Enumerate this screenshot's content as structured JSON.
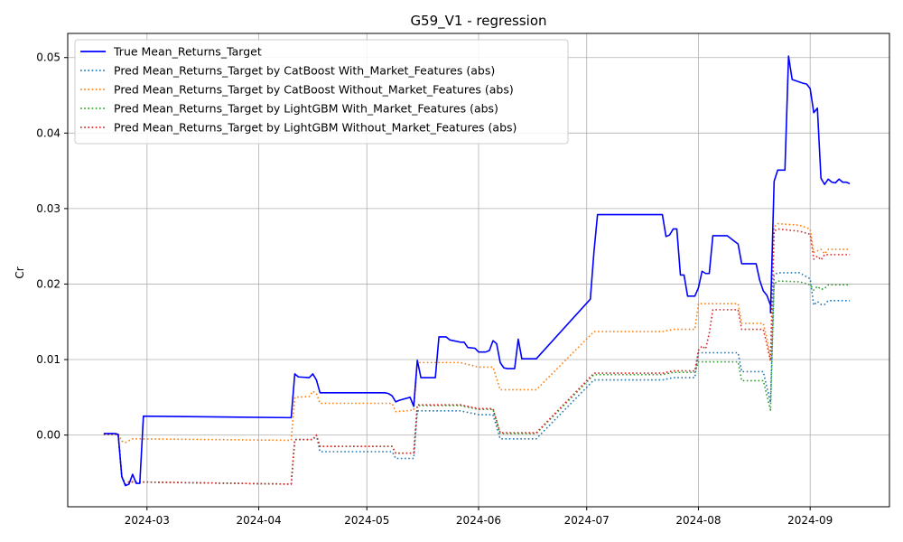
{
  "chart_data": {
    "type": "line",
    "title": "G59_V1 - regression",
    "xlabel": "",
    "ylabel": "Cr",
    "x_axis_type": "date",
    "xlim": [
      "2024-02-08",
      "2024-09-23"
    ],
    "ylim": [
      -0.0095,
      0.0532
    ],
    "x_tick_labels": [
      "2024-03",
      "2024-04",
      "2024-05",
      "2024-06",
      "2024-07",
      "2024-08",
      "2024-09"
    ],
    "x_tick_dates": [
      "2024-03-01",
      "2024-04-01",
      "2024-05-01",
      "2024-06-01",
      "2024-07-01",
      "2024-08-01",
      "2024-09-01"
    ],
    "y_ticks": [
      0.0,
      0.01,
      0.02,
      0.03,
      0.04,
      0.05
    ],
    "y_tick_labels": [
      "0.00",
      "0.01",
      "0.02",
      "0.03",
      "0.04",
      "0.05"
    ],
    "grid": true,
    "legend_position": "upper-left",
    "series": [
      {
        "name": "True Mean_Returns_Target",
        "color": "#0000ff",
        "style": "solid",
        "points": [
          [
            "2024-02-18",
            0.0002
          ],
          [
            "2024-02-21",
            0.0002
          ],
          [
            "2024-02-22",
            0.0001
          ],
          [
            "2024-02-23",
            -0.0055
          ],
          [
            "2024-02-24",
            -0.0067
          ],
          [
            "2024-02-25",
            -0.0065
          ],
          [
            "2024-02-26",
            -0.0052
          ],
          [
            "2024-02-27",
            -0.0064
          ],
          [
            "2024-02-28",
            -0.0064
          ],
          [
            "2024-02-29",
            0.0025
          ],
          [
            "2024-04-10",
            0.0023
          ],
          [
            "2024-04-11",
            0.0081
          ],
          [
            "2024-04-12",
            0.0077
          ],
          [
            "2024-04-15",
            0.0076
          ],
          [
            "2024-04-16",
            0.0081
          ],
          [
            "2024-04-17",
            0.0073
          ],
          [
            "2024-04-18",
            0.0056
          ],
          [
            "2024-05-06",
            0.0056
          ],
          [
            "2024-05-07",
            0.0055
          ],
          [
            "2024-05-08",
            0.0052
          ],
          [
            "2024-05-09",
            0.0044
          ],
          [
            "2024-05-10",
            0.0046
          ],
          [
            "2024-05-13",
            0.005
          ],
          [
            "2024-05-14",
            0.0038
          ],
          [
            "2024-05-15",
            0.0099
          ],
          [
            "2024-05-16",
            0.0076
          ],
          [
            "2024-05-17",
            0.0076
          ],
          [
            "2024-05-20",
            0.0076
          ],
          [
            "2024-05-21",
            0.013
          ],
          [
            "2024-05-23",
            0.013
          ],
          [
            "2024-05-24",
            0.0126
          ],
          [
            "2024-05-27",
            0.0123
          ],
          [
            "2024-05-28",
            0.0123
          ],
          [
            "2024-05-29",
            0.0116
          ],
          [
            "2024-05-31",
            0.0115
          ],
          [
            "2024-06-01",
            0.011
          ],
          [
            "2024-06-03",
            0.011
          ],
          [
            "2024-06-04",
            0.0112
          ],
          [
            "2024-06-05",
            0.0125
          ],
          [
            "2024-06-06",
            0.0121
          ],
          [
            "2024-06-07",
            0.0096
          ],
          [
            "2024-06-08",
            0.0089
          ],
          [
            "2024-06-09",
            0.0088
          ],
          [
            "2024-06-11",
            0.0088
          ],
          [
            "2024-06-12",
            0.0127
          ],
          [
            "2024-06-13",
            0.0101
          ],
          [
            "2024-06-17",
            0.0101
          ],
          [
            "2024-07-02",
            0.018
          ],
          [
            "2024-07-03",
            0.0242
          ],
          [
            "2024-07-04",
            0.0292
          ],
          [
            "2024-07-22",
            0.0292
          ],
          [
            "2024-07-23",
            0.0263
          ],
          [
            "2024-07-24",
            0.0265
          ],
          [
            "2024-07-25",
            0.0273
          ],
          [
            "2024-07-26",
            0.0273
          ],
          [
            "2024-07-27",
            0.0212
          ],
          [
            "2024-07-28",
            0.0212
          ],
          [
            "2024-07-29",
            0.0184
          ],
          [
            "2024-07-31",
            0.0184
          ],
          [
            "2024-08-01",
            0.0195
          ],
          [
            "2024-08-02",
            0.0217
          ],
          [
            "2024-08-03",
            0.0214
          ],
          [
            "2024-08-04",
            0.0214
          ],
          [
            "2024-08-05",
            0.0264
          ],
          [
            "2024-08-09",
            0.0264
          ],
          [
            "2024-08-12",
            0.0253
          ],
          [
            "2024-08-13",
            0.0227
          ],
          [
            "2024-08-17",
            0.0227
          ],
          [
            "2024-08-18",
            0.0205
          ],
          [
            "2024-08-19",
            0.0191
          ],
          [
            "2024-08-20",
            0.0185
          ],
          [
            "2024-08-21",
            0.0172
          ],
          [
            "2024-08-21",
            0.0162
          ],
          [
            "2024-08-22",
            0.0336
          ],
          [
            "2024-08-23",
            0.0351
          ],
          [
            "2024-08-25",
            0.0351
          ],
          [
            "2024-08-26",
            0.0502
          ],
          [
            "2024-08-27",
            0.0471
          ],
          [
            "2024-08-30",
            0.0466
          ],
          [
            "2024-08-31",
            0.0465
          ],
          [
            "2024-09-01",
            0.0459
          ],
          [
            "2024-09-02",
            0.0427
          ],
          [
            "2024-09-03",
            0.0433
          ],
          [
            "2024-09-04",
            0.034
          ],
          [
            "2024-09-05",
            0.0332
          ],
          [
            "2024-09-06",
            0.0339
          ],
          [
            "2024-09-07",
            0.0335
          ],
          [
            "2024-09-08",
            0.0334
          ],
          [
            "2024-09-09",
            0.0339
          ],
          [
            "2024-09-10",
            0.0335
          ],
          [
            "2024-09-11",
            0.0335
          ],
          [
            "2024-09-12",
            0.0333
          ]
        ]
      },
      {
        "name": "Pred Mean_Returns_Target by CatBoost With_Market_Features (abs)",
        "color": "#1f77b4",
        "style": "dotted",
        "points": [
          [
            "2024-02-18",
            0.0001
          ],
          [
            "2024-02-22",
            0.0001
          ],
          [
            "2024-02-23",
            -0.0055
          ],
          [
            "2024-02-24",
            -0.0065
          ],
          [
            "2024-02-25",
            -0.0062
          ],
          [
            "2024-04-10",
            -0.0065
          ],
          [
            "2024-04-11",
            -0.0006
          ],
          [
            "2024-04-16",
            -0.0006
          ],
          [
            "2024-04-17",
            0.0
          ],
          [
            "2024-04-18",
            -0.0022
          ],
          [
            "2024-05-08",
            -0.0022
          ],
          [
            "2024-05-09",
            -0.0031
          ],
          [
            "2024-05-14",
            -0.0031
          ],
          [
            "2024-05-15",
            0.0032
          ],
          [
            "2024-05-27",
            0.0032
          ],
          [
            "2024-06-01",
            0.0027
          ],
          [
            "2024-06-05",
            0.0027
          ],
          [
            "2024-06-07",
            -0.0005
          ],
          [
            "2024-06-17",
            -0.0005
          ],
          [
            "2024-07-03",
            0.0073
          ],
          [
            "2024-07-22",
            0.0073
          ],
          [
            "2024-07-25",
            0.0076
          ],
          [
            "2024-07-31",
            0.0076
          ],
          [
            "2024-08-01",
            0.0109
          ],
          [
            "2024-08-12",
            0.0109
          ],
          [
            "2024-08-13",
            0.0084
          ],
          [
            "2024-08-19",
            0.0084
          ],
          [
            "2024-08-20",
            0.0063
          ],
          [
            "2024-08-21",
            0.0043
          ],
          [
            "2024-08-22",
            0.0212
          ],
          [
            "2024-08-23",
            0.0215
          ],
          [
            "2024-08-29",
            0.0215
          ],
          [
            "2024-09-01",
            0.0207
          ],
          [
            "2024-09-02",
            0.0172
          ],
          [
            "2024-09-03",
            0.0177
          ],
          [
            "2024-09-04",
            0.0173
          ],
          [
            "2024-09-05",
            0.0173
          ],
          [
            "2024-09-06",
            0.0178
          ],
          [
            "2024-09-12",
            0.0178
          ]
        ]
      },
      {
        "name": "Pred Mean_Returns_Target by CatBoost Without_Market_Features (abs)",
        "color": "#ff7f0e",
        "style": "dotted",
        "points": [
          [
            "2024-02-18",
            0.0002
          ],
          [
            "2024-02-22",
            0.0002
          ],
          [
            "2024-02-23",
            -0.0008
          ],
          [
            "2024-02-24",
            -0.001
          ],
          [
            "2024-02-26",
            -0.0005
          ],
          [
            "2024-04-10",
            -0.0007
          ],
          [
            "2024-04-11",
            0.005
          ],
          [
            "2024-04-15",
            0.0051
          ],
          [
            "2024-04-16",
            0.0058
          ],
          [
            "2024-04-17",
            0.0055
          ],
          [
            "2024-04-18",
            0.0042
          ],
          [
            "2024-05-08",
            0.0042
          ],
          [
            "2024-05-09",
            0.0031
          ],
          [
            "2024-05-14",
            0.0033
          ],
          [
            "2024-05-15",
            0.0096
          ],
          [
            "2024-05-27",
            0.0096
          ],
          [
            "2024-06-01",
            0.009
          ],
          [
            "2024-06-05",
            0.009
          ],
          [
            "2024-06-07",
            0.006
          ],
          [
            "2024-06-17",
            0.006
          ],
          [
            "2024-07-03",
            0.0137
          ],
          [
            "2024-07-22",
            0.0137
          ],
          [
            "2024-07-25",
            0.014
          ],
          [
            "2024-07-31",
            0.014
          ],
          [
            "2024-08-01",
            0.0174
          ],
          [
            "2024-08-12",
            0.0174
          ],
          [
            "2024-08-13",
            0.0148
          ],
          [
            "2024-08-19",
            0.0148
          ],
          [
            "2024-08-20",
            0.0128
          ],
          [
            "2024-08-21",
            0.0102
          ],
          [
            "2024-08-22",
            0.0276
          ],
          [
            "2024-08-23",
            0.028
          ],
          [
            "2024-08-29",
            0.0278
          ],
          [
            "2024-09-01",
            0.0273
          ],
          [
            "2024-09-02",
            0.0242
          ],
          [
            "2024-09-04",
            0.0246
          ],
          [
            "2024-09-05",
            0.024
          ],
          [
            "2024-09-06",
            0.0246
          ],
          [
            "2024-09-12",
            0.0246
          ]
        ]
      },
      {
        "name": "Pred Mean_Returns_Target by LightGBM With_Market_Features (abs)",
        "color": "#2ca02c",
        "style": "dotted",
        "points": [
          [
            "2024-02-18",
            0.0001
          ],
          [
            "2024-02-22",
            0.0001
          ],
          [
            "2024-02-23",
            -0.0055
          ],
          [
            "2024-02-24",
            -0.0065
          ],
          [
            "2024-02-25",
            -0.0062
          ],
          [
            "2024-04-10",
            -0.0065
          ],
          [
            "2024-04-11",
            -0.0006
          ],
          [
            "2024-04-16",
            -0.0006
          ],
          [
            "2024-04-17",
            0.0
          ],
          [
            "2024-04-18",
            -0.0015
          ],
          [
            "2024-05-08",
            -0.0015
          ],
          [
            "2024-05-09",
            -0.0024
          ],
          [
            "2024-05-14",
            -0.0024
          ],
          [
            "2024-05-15",
            0.0039
          ],
          [
            "2024-05-27",
            0.0039
          ],
          [
            "2024-06-01",
            0.0034
          ],
          [
            "2024-06-05",
            0.0034
          ],
          [
            "2024-06-07",
            0.0002
          ],
          [
            "2024-06-17",
            0.0002
          ],
          [
            "2024-07-03",
            0.008
          ],
          [
            "2024-07-22",
            0.008
          ],
          [
            "2024-07-25",
            0.0083
          ],
          [
            "2024-07-31",
            0.0083
          ],
          [
            "2024-08-01",
            0.0097
          ],
          [
            "2024-08-12",
            0.0097
          ],
          [
            "2024-08-13",
            0.0072
          ],
          [
            "2024-08-19",
            0.0072
          ],
          [
            "2024-08-20",
            0.0052
          ],
          [
            "2024-08-21",
            0.0033
          ],
          [
            "2024-08-22",
            0.02
          ],
          [
            "2024-08-23",
            0.0204
          ],
          [
            "2024-08-29",
            0.0203
          ],
          [
            "2024-09-01",
            0.0199
          ],
          [
            "2024-09-02",
            0.0192
          ],
          [
            "2024-09-03",
            0.0197
          ],
          [
            "2024-09-04",
            0.0193
          ],
          [
            "2024-09-05",
            0.0194
          ],
          [
            "2024-09-06",
            0.0199
          ],
          [
            "2024-09-12",
            0.0199
          ]
        ]
      },
      {
        "name": "Pred Mean_Returns_Target by LightGBM Without_Market_Features (abs)",
        "color": "#d62728",
        "style": "dotted",
        "points": [
          [
            "2024-02-18",
            0.0001
          ],
          [
            "2024-02-22",
            0.0001
          ],
          [
            "2024-02-23",
            -0.0055
          ],
          [
            "2024-02-24",
            -0.0065
          ],
          [
            "2024-02-25",
            -0.0062
          ],
          [
            "2024-04-10",
            -0.0065
          ],
          [
            "2024-04-11",
            -0.0006
          ],
          [
            "2024-04-16",
            -0.0006
          ],
          [
            "2024-04-17",
            0.0
          ],
          [
            "2024-04-18",
            -0.0015
          ],
          [
            "2024-05-08",
            -0.0015
          ],
          [
            "2024-05-09",
            -0.0024
          ],
          [
            "2024-05-14",
            -0.0024
          ],
          [
            "2024-05-15",
            0.004
          ],
          [
            "2024-05-27",
            0.004
          ],
          [
            "2024-06-01",
            0.0035
          ],
          [
            "2024-06-05",
            0.0035
          ],
          [
            "2024-06-07",
            0.0003
          ],
          [
            "2024-06-17",
            0.0003
          ],
          [
            "2024-07-03",
            0.0082
          ],
          [
            "2024-07-22",
            0.0082
          ],
          [
            "2024-07-25",
            0.0085
          ],
          [
            "2024-07-31",
            0.0085
          ],
          [
            "2024-08-01",
            0.0112
          ],
          [
            "2024-08-02",
            0.0118
          ],
          [
            "2024-08-03",
            0.0114
          ],
          [
            "2024-08-04",
            0.0135
          ],
          [
            "2024-08-05",
            0.0166
          ],
          [
            "2024-08-12",
            0.0166
          ],
          [
            "2024-08-13",
            0.014
          ],
          [
            "2024-08-19",
            0.014
          ],
          [
            "2024-08-20",
            0.012
          ],
          [
            "2024-08-21",
            0.0098
          ],
          [
            "2024-08-22",
            0.027
          ],
          [
            "2024-08-23",
            0.0273
          ],
          [
            "2024-08-29",
            0.027
          ],
          [
            "2024-09-01",
            0.0266
          ],
          [
            "2024-09-02",
            0.0233
          ],
          [
            "2024-09-03",
            0.0237
          ],
          [
            "2024-09-04",
            0.0232
          ],
          [
            "2024-09-05",
            0.0239
          ],
          [
            "2024-09-06",
            0.0239
          ],
          [
            "2024-09-12",
            0.0239
          ]
        ]
      }
    ]
  }
}
